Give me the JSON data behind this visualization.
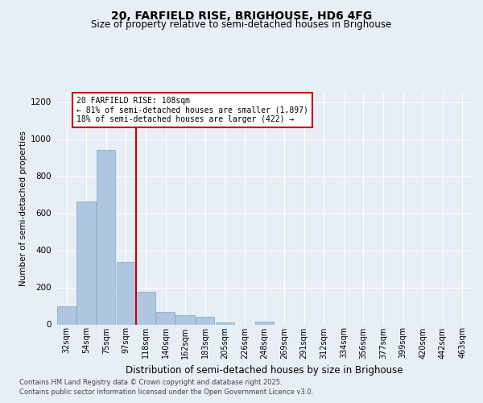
{
  "title1": "20, FARFIELD RISE, BRIGHOUSE, HD6 4FG",
  "title2": "Size of property relative to semi-detached houses in Brighouse",
  "xlabel": "Distribution of semi-detached houses by size in Brighouse",
  "ylabel": "Number of semi-detached properties",
  "categories": [
    "32sqm",
    "54sqm",
    "75sqm",
    "97sqm",
    "118sqm",
    "140sqm",
    "162sqm",
    "183sqm",
    "205sqm",
    "226sqm",
    "248sqm",
    "269sqm",
    "291sqm",
    "312sqm",
    "334sqm",
    "356sqm",
    "377sqm",
    "399sqm",
    "420sqm",
    "442sqm",
    "463sqm"
  ],
  "values": [
    97,
    661,
    940,
    338,
    175,
    68,
    52,
    40,
    10,
    0,
    14,
    0,
    0,
    0,
    0,
    0,
    0,
    0,
    0,
    0,
    0
  ],
  "bar_color": "#aec6e0",
  "bar_edge_color": "#7aaac8",
  "vline_x": 3.5,
  "annotation_title": "20 FARFIELD RISE: 108sqm",
  "annotation_line1": "← 81% of semi-detached houses are smaller (1,897)",
  "annotation_line2": "18% of semi-detached houses are larger (422) →",
  "ylim": [
    0,
    1250
  ],
  "yticks": [
    0,
    200,
    400,
    600,
    800,
    1000,
    1200
  ],
  "footnote1": "Contains HM Land Registry data © Crown copyright and database right 2025.",
  "footnote2": "Contains public sector information licensed under the Open Government Licence v3.0.",
  "bg_color": "#e8eef5",
  "plot_bg_color": "#e8eef5",
  "grid_color": "#ffffff",
  "vline_color": "#cc0000",
  "annotation_box_color": "#ffffff",
  "annotation_box_edge_color": "#cc0000",
  "title1_fontsize": 10,
  "title2_fontsize": 8.5,
  "xlabel_fontsize": 8.5,
  "ylabel_fontsize": 7.5,
  "tick_fontsize": 7,
  "ytick_fontsize": 7.5,
  "footnote_fontsize": 6
}
